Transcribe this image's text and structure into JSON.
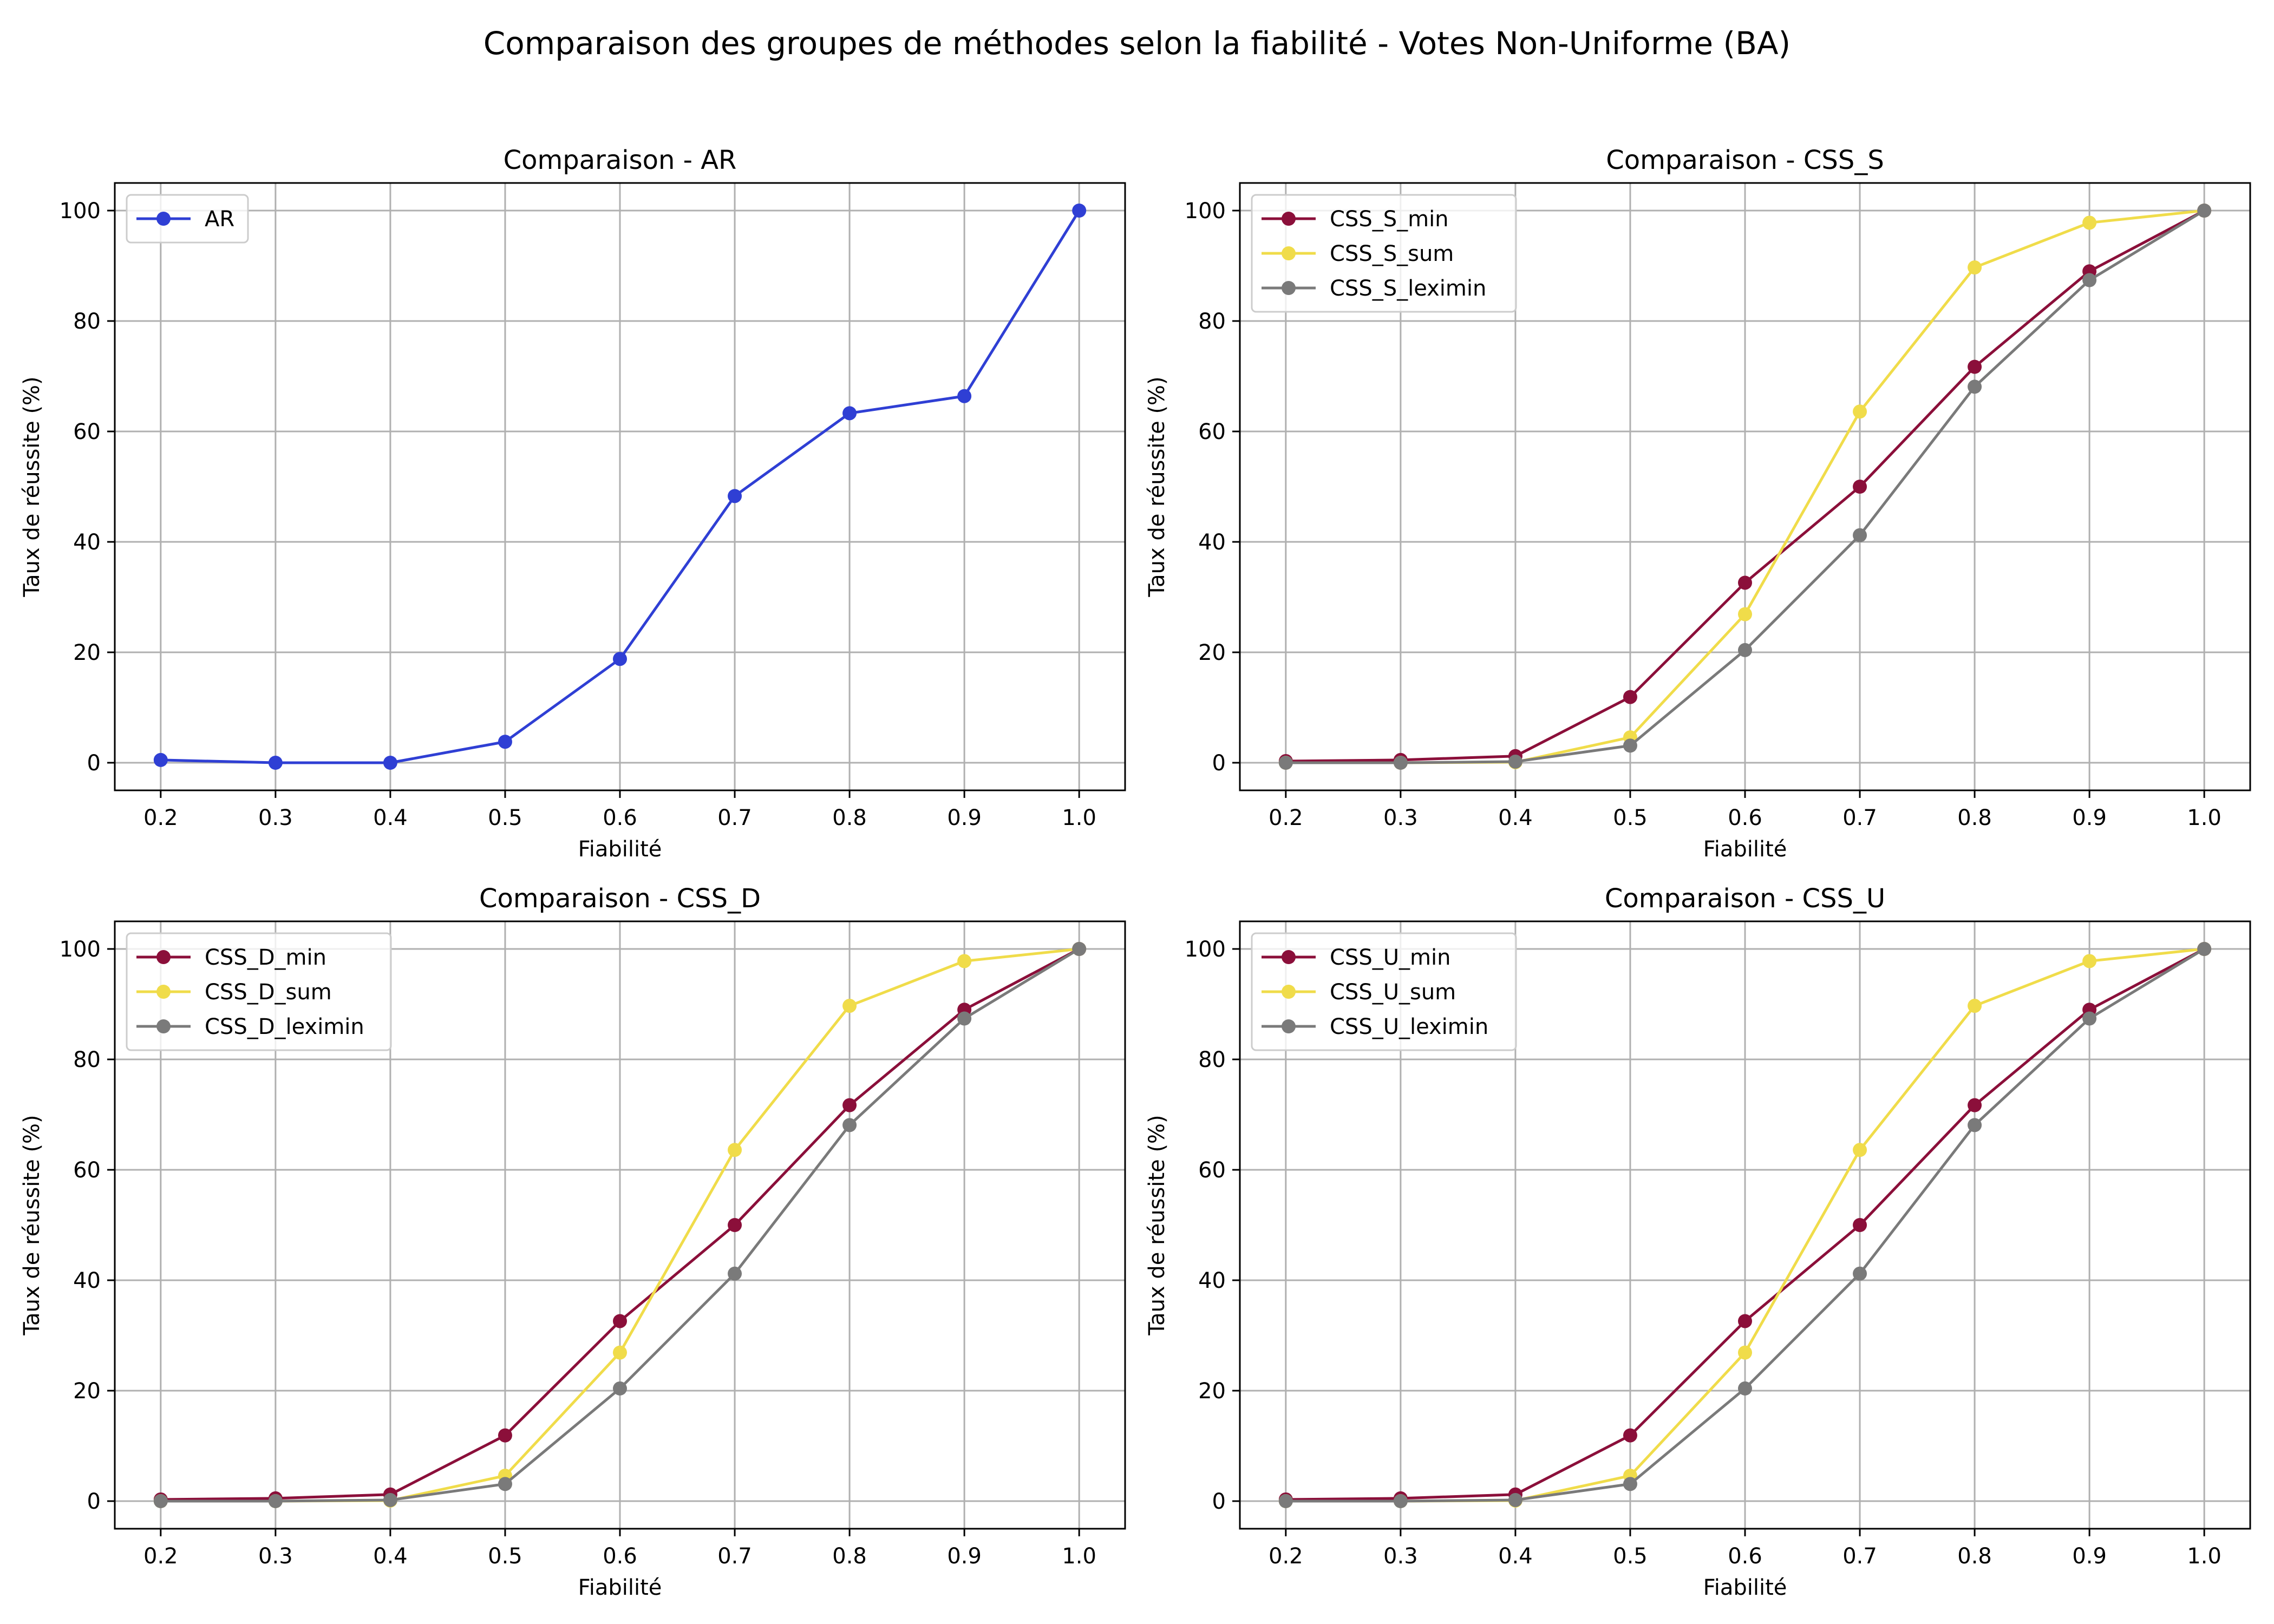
{
  "figure": {
    "title": "Comparaison des groupes de méthodes selon la fiabilité - Votes Non-Uniforme (BA)"
  },
  "colors": {
    "AR": "#2f3fd4",
    "min": "#8b0f3a",
    "sum": "#f0dc4a",
    "leximin": "#7a7a7a",
    "grid": "#b0b0b0",
    "axes": "#000000"
  },
  "chart_data": [
    {
      "type": "line",
      "title": "Comparaison - AR",
      "xlabel": "Fiabilité",
      "ylabel": "Taux de réussite (%)",
      "x": [
        0.2,
        0.3,
        0.4,
        0.5,
        0.6,
        0.7,
        0.8,
        0.9,
        1.0
      ],
      "xticks": [
        "0.2",
        "0.3",
        "0.4",
        "0.5",
        "0.6",
        "0.7",
        "0.8",
        "0.9",
        "1.0"
      ],
      "yticks": [
        "0",
        "20",
        "40",
        "60",
        "80",
        "100"
      ],
      "xlim": [
        0.16,
        1.04
      ],
      "ylim": [
        -5,
        105
      ],
      "grid": true,
      "legend": "upper-left",
      "series": [
        {
          "name": "AR",
          "color_key": "AR",
          "values": [
            0.5,
            0.0,
            0.0,
            3.8,
            18.8,
            48.3,
            63.3,
            66.4,
            100.0
          ]
        }
      ]
    },
    {
      "type": "line",
      "title": "Comparaison - CSS_S",
      "xlabel": "Fiabilité",
      "ylabel": "Taux de réussite (%)",
      "x": [
        0.2,
        0.3,
        0.4,
        0.5,
        0.6,
        0.7,
        0.8,
        0.9,
        1.0
      ],
      "xticks": [
        "0.2",
        "0.3",
        "0.4",
        "0.5",
        "0.6",
        "0.7",
        "0.8",
        "0.9",
        "1.0"
      ],
      "yticks": [
        "0",
        "20",
        "40",
        "60",
        "80",
        "100"
      ],
      "xlim": [
        0.16,
        1.04
      ],
      "ylim": [
        -5,
        105
      ],
      "grid": true,
      "legend": "upper-left",
      "series": [
        {
          "name": "CSS_S_min",
          "color_key": "min",
          "values": [
            0.3,
            0.5,
            1.2,
            11.9,
            32.6,
            50.0,
            71.7,
            89.0,
            100.0
          ]
        },
        {
          "name": "CSS_S_sum",
          "color_key": "sum",
          "values": [
            0.0,
            0.0,
            0.1,
            4.6,
            26.9,
            63.6,
            89.7,
            97.8,
            100.0
          ]
        },
        {
          "name": "CSS_S_leximin",
          "color_key": "leximin",
          "values": [
            0.0,
            0.0,
            0.2,
            3.1,
            20.4,
            41.2,
            68.1,
            87.4,
            100.0
          ]
        }
      ]
    },
    {
      "type": "line",
      "title": "Comparaison - CSS_D",
      "xlabel": "Fiabilité",
      "ylabel": "Taux de réussite (%)",
      "x": [
        0.2,
        0.3,
        0.4,
        0.5,
        0.6,
        0.7,
        0.8,
        0.9,
        1.0
      ],
      "xticks": [
        "0.2",
        "0.3",
        "0.4",
        "0.5",
        "0.6",
        "0.7",
        "0.8",
        "0.9",
        "1.0"
      ],
      "yticks": [
        "0",
        "20",
        "40",
        "60",
        "80",
        "100"
      ],
      "xlim": [
        0.16,
        1.04
      ],
      "ylim": [
        -5,
        105
      ],
      "grid": true,
      "legend": "upper-left",
      "series": [
        {
          "name": "CSS_D_min",
          "color_key": "min",
          "values": [
            0.3,
            0.5,
            1.2,
            11.9,
            32.6,
            50.0,
            71.7,
            89.0,
            100.0
          ]
        },
        {
          "name": "CSS_D_sum",
          "color_key": "sum",
          "values": [
            0.0,
            0.0,
            0.1,
            4.6,
            26.9,
            63.6,
            89.7,
            97.8,
            100.0
          ]
        },
        {
          "name": "CSS_D_leximin",
          "color_key": "leximin",
          "values": [
            0.0,
            0.0,
            0.2,
            3.1,
            20.4,
            41.2,
            68.1,
            87.4,
            100.0
          ]
        }
      ]
    },
    {
      "type": "line",
      "title": "Comparaison - CSS_U",
      "xlabel": "Fiabilité",
      "ylabel": "Taux de réussite (%)",
      "x": [
        0.2,
        0.3,
        0.4,
        0.5,
        0.6,
        0.7,
        0.8,
        0.9,
        1.0
      ],
      "xticks": [
        "0.2",
        "0.3",
        "0.4",
        "0.5",
        "0.6",
        "0.7",
        "0.8",
        "0.9",
        "1.0"
      ],
      "yticks": [
        "0",
        "20",
        "40",
        "60",
        "80",
        "100"
      ],
      "xlim": [
        0.16,
        1.04
      ],
      "ylim": [
        -5,
        105
      ],
      "grid": true,
      "legend": "upper-left",
      "series": [
        {
          "name": "CSS_U_min",
          "color_key": "min",
          "values": [
            0.3,
            0.5,
            1.2,
            11.9,
            32.6,
            50.0,
            71.7,
            89.0,
            100.0
          ]
        },
        {
          "name": "CSS_U_sum",
          "color_key": "sum",
          "values": [
            0.0,
            0.0,
            0.1,
            4.6,
            26.9,
            63.6,
            89.7,
            97.8,
            100.0
          ]
        },
        {
          "name": "CSS_U_leximin",
          "color_key": "leximin",
          "values": [
            0.0,
            0.0,
            0.2,
            3.1,
            20.4,
            41.2,
            68.1,
            87.4,
            100.0
          ]
        }
      ]
    }
  ]
}
